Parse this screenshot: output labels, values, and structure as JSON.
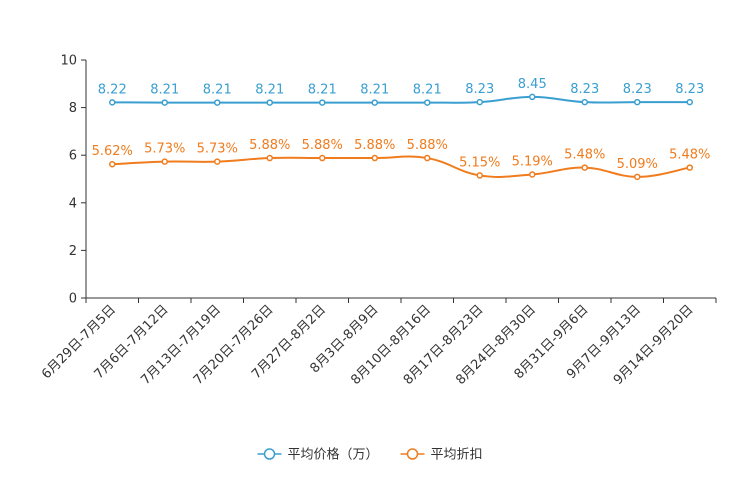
{
  "chart_data": {
    "type": "line",
    "title": "",
    "xlabel": "",
    "ylabel": "",
    "ylim": [
      0,
      10
    ],
    "yticks": [
      0,
      2,
      4,
      6,
      8,
      10
    ],
    "grid": false,
    "legend_position": "bottom-center",
    "categories": [
      "6月29日-7月5日",
      "7月6日-7月12日",
      "7月13日-7月19日",
      "7月20日-7月26日",
      "7月27日-8月2日",
      "8月3日-8月9日",
      "8月10日-8月16日",
      "8月17日-8月23日",
      "8月24日-8月30日",
      "8月31日-9月6日",
      "9月7日-9月13日",
      "9月14日-9月20日"
    ],
    "series": [
      {
        "name": "平均价格（万）",
        "color": "#3a9fd0",
        "values": [
          8.22,
          8.21,
          8.21,
          8.21,
          8.21,
          8.21,
          8.21,
          8.23,
          8.45,
          8.23,
          8.23,
          8.23
        ],
        "labels": [
          "8.22",
          "8.21",
          "8.21",
          "8.21",
          "8.21",
          "8.21",
          "8.21",
          "8.23",
          "8.45",
          "8.23",
          "8.23",
          "8.23"
        ]
      },
      {
        "name": "平均折扣",
        "color": "#f07c1e",
        "values": [
          5.62,
          5.73,
          5.73,
          5.88,
          5.88,
          5.88,
          5.88,
          5.15,
          5.19,
          5.48,
          5.09,
          5.48
        ],
        "labels": [
          "5.62%",
          "5.73%",
          "5.73%",
          "5.88%",
          "5.88%",
          "5.88%",
          "5.88%",
          "5.15%",
          "5.19%",
          "5.48%",
          "5.09%",
          "5.48%"
        ]
      }
    ]
  }
}
